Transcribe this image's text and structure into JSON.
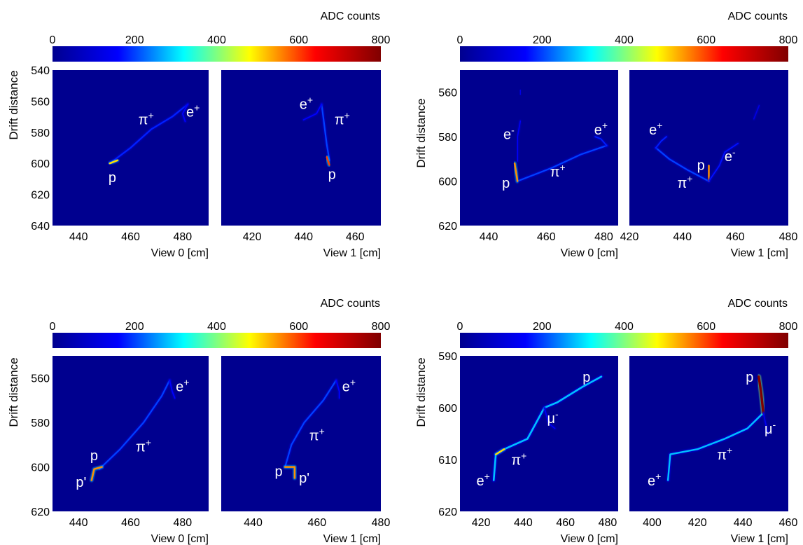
{
  "colorbar": {
    "label": "ADC counts",
    "min": 0,
    "max": 800,
    "ticks": [
      "0",
      "200",
      "400",
      "600",
      "800"
    ],
    "colormap": [
      "#00008f",
      "#0000ff",
      "#00ffff",
      "#ffff00",
      "#ff0000",
      "#800000"
    ]
  },
  "chart_data": [
    {
      "type": "heatmap",
      "ylabel": "Drift distance",
      "ylim": [
        640,
        540
      ],
      "yticks": [
        540,
        560,
        580,
        600,
        620,
        640
      ],
      "panels": [
        {
          "xlabel": "View 0  [cm]",
          "xlim": [
            430,
            490
          ],
          "xticks": [
            440,
            460,
            480
          ],
          "tracks": [
            {
              "points": [
                [
                  452,
                  600
                ],
                [
                  460,
                  590
                ],
                [
                  468,
                  578
                ],
                [
                  476,
                  570
                ],
                [
                  482,
                  562
                ]
              ],
              "adc": 180,
              "width": 2.2
            },
            {
              "points": [
                [
                  482,
                  562
                ],
                [
                  480,
                  568
                ],
                [
                  481,
                  573
                ]
              ],
              "adc": 160,
              "width": 1.8
            },
            {
              "points": [
                [
                  452,
                  600
                ],
                [
                  455,
                  598
                ]
              ],
              "adc": 500,
              "width": 2.5
            }
          ],
          "labels": [
            {
              "text": "π",
              "sup": "+",
              "x": 466,
              "y": 575
            },
            {
              "text": "e",
              "sup": "+",
              "x": 484,
              "y": 570
            },
            {
              "text": "p",
              "sup": "",
              "x": 453,
              "y": 612
            }
          ]
        },
        {
          "xlabel": "View 1  [cm]",
          "xlim": [
            408,
            470
          ],
          "xticks": [
            420,
            440,
            460
          ],
          "tracks": [
            {
              "points": [
                [
                  447,
                  562
                ],
                [
                  448,
                  575
                ],
                [
                  449,
                  588
                ],
                [
                  450,
                  598
                ]
              ],
              "adc": 200,
              "width": 2.2
            },
            {
              "points": [
                [
                  447,
                  562
                ],
                [
                  445,
                  568
                ],
                [
                  440,
                  572
                ]
              ],
              "adc": 160,
              "width": 1.8
            },
            {
              "points": [
                [
                  449,
                  596
                ],
                [
                  450,
                  601
                ]
              ],
              "adc": 600,
              "width": 2.5
            }
          ],
          "labels": [
            {
              "text": "e",
              "sup": "+",
              "x": 441,
              "y": 565
            },
            {
              "text": "π",
              "sup": "+",
              "x": 455,
              "y": 575
            },
            {
              "text": "p",
              "sup": "",
              "x": 451,
              "y": 610
            }
          ]
        }
      ]
    },
    {
      "type": "heatmap",
      "ylabel": "Drift distance",
      "ylim": [
        620,
        550
      ],
      "yticks": [
        560,
        580,
        600,
        620
      ],
      "panels": [
        {
          "xlabel": "View 0  [cm]",
          "xlim": [
            430,
            485
          ],
          "xticks": [
            440,
            460,
            480
          ],
          "tracks": [
            {
              "points": [
                [
                  450,
                  600
                ],
                [
                  462,
                  594
                ],
                [
                  472,
                  588
                ],
                [
                  481,
                  584
                ]
              ],
              "adc": 200,
              "width": 2.2
            },
            {
              "points": [
                [
                  481,
                  584
                ],
                [
                  479,
                  581
                ],
                [
                  477,
                  580
                ]
              ],
              "adc": 180,
              "width": 1.8
            },
            {
              "points": [
                [
                  449,
                  592
                ],
                [
                  450,
                  600
                ]
              ],
              "adc": 550,
              "width": 2.5
            },
            {
              "points": [
                [
                  451,
                  573
                ],
                [
                  450,
                  580
                ],
                [
                  450,
                  587
                ],
                [
                  450,
                  591
                ]
              ],
              "adc": 150,
              "width": 1.6
            },
            {
              "points": [
                [
                  451,
                  559
                ],
                [
                  451,
                  561
                ]
              ],
              "adc": 120,
              "width": 1.6
            }
          ],
          "labels": [
            {
              "text": "e",
              "sup": "-",
              "x": 447,
              "y": 581
            },
            {
              "text": "e",
              "sup": "+",
              "x": 479,
              "y": 579
            },
            {
              "text": "π",
              "sup": "+",
              "x": 464,
              "y": 598
            },
            {
              "text": "p",
              "sup": "",
              "x": 446,
              "y": 603
            }
          ]
        },
        {
          "xlabel": "View 1  [cm]",
          "xlim": [
            420,
            480
          ],
          "xticks": [
            420,
            440,
            460,
            480
          ],
          "tracks": [
            {
              "points": [
                [
                  450,
                  600
                ],
                [
                  442,
                  595
                ],
                [
                  435,
                  590
                ],
                [
                  430,
                  585
                ]
              ],
              "adc": 200,
              "width": 2.2
            },
            {
              "points": [
                [
                  430,
                  585
                ],
                [
                  432,
                  582
                ],
                [
                  434,
                  580
                ]
              ],
              "adc": 180,
              "width": 1.8
            },
            {
              "points": [
                [
                  450,
                  593
                ],
                [
                  450,
                  600
                ]
              ],
              "adc": 550,
              "width": 2.5
            },
            {
              "points": [
                [
                  450,
                  600
                ],
                [
                  454,
                  593
                ],
                [
                  456,
                  587
                ],
                [
                  461,
                  583
                ]
              ],
              "adc": 170,
              "width": 1.8
            },
            {
              "points": [
                [
                  467,
                  572
                ],
                [
                  469,
                  566
                ]
              ],
              "adc": 120,
              "width": 1.6
            }
          ],
          "labels": [
            {
              "text": "e",
              "sup": "+",
              "x": 430,
              "y": 579
            },
            {
              "text": "p",
              "sup": "",
              "x": 447,
              "y": 595
            },
            {
              "text": "e",
              "sup": "-",
              "x": 458,
              "y": 591
            },
            {
              "text": "π",
              "sup": "+",
              "x": 441,
              "y": 603
            }
          ]
        }
      ]
    },
    {
      "type": "heatmap",
      "ylabel": "Drift distance",
      "ylim": [
        620,
        550
      ],
      "yticks": [
        560,
        580,
        600,
        620
      ],
      "panels": [
        {
          "xlabel": "View 0  [cm]",
          "xlim": [
            430,
            490
          ],
          "xticks": [
            440,
            460,
            480
          ],
          "tracks": [
            {
              "points": [
                [
                  448,
                  601
                ],
                [
                  456,
                  592
                ],
                [
                  465,
                  580
                ],
                [
                  472,
                  568
                ],
                [
                  475,
                  561
                ]
              ],
              "adc": 200,
              "width": 2.2
            },
            {
              "points": [
                [
                  475,
                  561
                ],
                [
                  476,
                  566
                ],
                [
                  477,
                  569
                ]
              ],
              "adc": 160,
              "width": 1.8
            },
            {
              "points": [
                [
                  445,
                  606
                ],
                [
                  446,
                  601
                ],
                [
                  449,
                  600
                ]
              ],
              "adc": 550,
              "width": 2.5
            }
          ],
          "labels": [
            {
              "text": "e",
              "sup": "+",
              "x": 480,
              "y": 566
            },
            {
              "text": "π",
              "sup": "+",
              "x": 465,
              "y": 593
            },
            {
              "text": "p",
              "sup": "",
              "x": 446,
              "y": 597
            },
            {
              "text": "p'",
              "sup": "",
              "x": 441,
              "y": 609
            }
          ]
        },
        {
          "xlabel": "View 1  [cm]",
          "xlim": [
            430,
            480
          ],
          "xticks": [
            440,
            460,
            480
          ],
          "tracks": [
            {
              "points": [
                [
                  450,
                  600
                ],
                [
                  452,
                  590
                ],
                [
                  456,
                  580
                ],
                [
                  462,
                  570
                ],
                [
                  466,
                  561
                ]
              ],
              "adc": 200,
              "width": 2.2
            },
            {
              "points": [
                [
                  466,
                  561
                ],
                [
                  467,
                  566
                ],
                [
                  467,
                  569
                ]
              ],
              "adc": 160,
              "width": 1.8
            },
            {
              "points": [
                [
                  450,
                  600
                ],
                [
                  453,
                  600
                ],
                [
                  453,
                  605
                ]
              ],
              "adc": 550,
              "width": 2.5
            }
          ],
          "labels": [
            {
              "text": "e",
              "sup": "+",
              "x": 470,
              "y": 566
            },
            {
              "text": "π",
              "sup": "+",
              "x": 460,
              "y": 588
            },
            {
              "text": "p",
              "sup": "",
              "x": 448,
              "y": 604
            },
            {
              "text": "p'",
              "sup": "",
              "x": 456,
              "y": 607
            }
          ]
        }
      ]
    },
    {
      "type": "heatmap",
      "ylabel": "Drift distance",
      "ylim": [
        620,
        590
      ],
      "yticks": [
        590,
        600,
        610,
        620
      ],
      "panels": [
        {
          "xlabel": "View 0  [cm]",
          "xlim": [
            410,
            485
          ],
          "xticks": [
            420,
            440,
            460,
            480
          ],
          "tracks": [
            {
              "points": [
                [
                  426,
                  614
                ],
                [
                  427,
                  609
                ],
                [
                  431,
                  608
                ],
                [
                  442,
                  606
                ],
                [
                  450,
                  600
                ],
                [
                  456,
                  599
                ],
                [
                  468,
                  596
                ],
                [
                  477,
                  594
                ]
              ],
              "adc": 280,
              "width": 2.6
            },
            {
              "points": [
                [
                  450,
                  600
                ],
                [
                  452,
                  603
                ],
                [
                  455,
                  604
                ]
              ],
              "adc": 150,
              "width": 1.6
            },
            {
              "points": [
                [
                  427,
                  609
                ],
                [
                  431,
                  608
                ]
              ],
              "adc": 500,
              "width": 2.4
            }
          ],
          "labels": [
            {
              "text": "p",
              "sup": "",
              "x": 470,
              "y": 595
            },
            {
              "text": "μ",
              "sup": "-",
              "x": 454,
              "y": 603
            },
            {
              "text": "π",
              "sup": "+",
              "x": 438,
              "y": 611
            },
            {
              "text": "e",
              "sup": "+",
              "x": 421,
              "y": 615
            }
          ]
        },
        {
          "xlabel": "View 1  [cm]",
          "xlim": [
            390,
            460
          ],
          "xticks": [
            400,
            420,
            440,
            460
          ],
          "tracks": [
            {
              "points": [
                [
                  407,
                  614
                ],
                [
                  408,
                  609
                ],
                [
                  420,
                  608
                ],
                [
                  432,
                  606
                ],
                [
                  442,
                  604
                ],
                [
                  449,
                  601
                ]
              ],
              "adc": 280,
              "width": 2.4
            },
            {
              "points": [
                [
                  447,
                  594
                ],
                [
                  448,
                  597
                ],
                [
                  449,
                  601
                ]
              ],
              "adc": 800,
              "width": 3.5
            },
            {
              "points": [
                [
                  449,
                  601
                ],
                [
                  451,
                  605
                ]
              ],
              "adc": 140,
              "width": 1.6
            }
          ],
          "labels": [
            {
              "text": "p",
              "sup": "",
              "x": 443,
              "y": 595
            },
            {
              "text": "μ",
              "sup": "-",
              "x": 452,
              "y": 605
            },
            {
              "text": "π",
              "sup": "+",
              "x": 432,
              "y": 610
            },
            {
              "text": "e",
              "sup": "+",
              "x": 401,
              "y": 615
            }
          ]
        }
      ]
    }
  ]
}
